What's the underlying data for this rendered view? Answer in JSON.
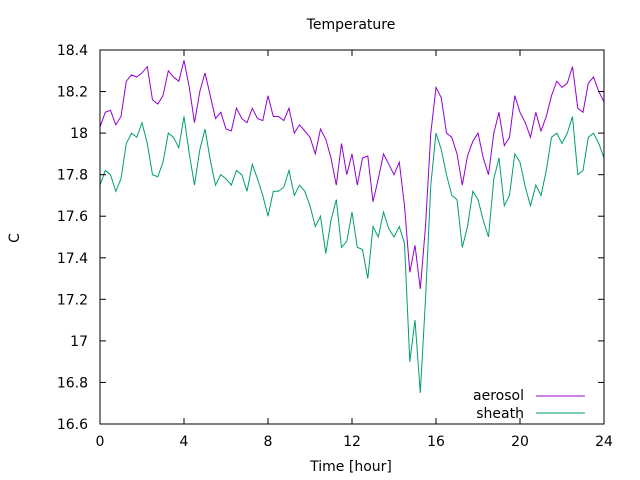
{
  "chart_data": {
    "type": "line",
    "title": "Temperature",
    "xlabel": "Time [hour]",
    "ylabel": "C",
    "xlim": [
      0,
      24
    ],
    "ylim": [
      16.6,
      18.4
    ],
    "xticks": [
      {
        "value": 0,
        "label": "0"
      },
      {
        "value": 4,
        "label": "4"
      },
      {
        "value": 8,
        "label": "8"
      },
      {
        "value": 12,
        "label": "12"
      },
      {
        "value": 16,
        "label": "16"
      },
      {
        "value": 20,
        "label": "20"
      },
      {
        "value": 24,
        "label": "24"
      }
    ],
    "yticks": [
      {
        "value": 16.6,
        "label": "16.6"
      },
      {
        "value": 16.8,
        "label": "16.8"
      },
      {
        "value": 17.0,
        "label": "17"
      },
      {
        "value": 17.2,
        "label": "17.2"
      },
      {
        "value": 17.4,
        "label": "17.4"
      },
      {
        "value": 17.6,
        "label": "17.6"
      },
      {
        "value": 17.8,
        "label": "17.8"
      },
      {
        "value": 18.0,
        "label": "18"
      },
      {
        "value": 18.2,
        "label": "18.2"
      },
      {
        "value": 18.4,
        "label": "18.4"
      }
    ],
    "grid": false,
    "legend_position": "bottom-right",
    "x": [
      0,
      0.25,
      0.5,
      0.75,
      1,
      1.25,
      1.5,
      1.75,
      2,
      2.25,
      2.5,
      2.75,
      3,
      3.25,
      3.5,
      3.75,
      4,
      4.25,
      4.5,
      4.75,
      5,
      5.25,
      5.5,
      5.75,
      6,
      6.25,
      6.5,
      6.75,
      7,
      7.25,
      7.5,
      7.75,
      8,
      8.25,
      8.5,
      8.75,
      9,
      9.25,
      9.5,
      9.75,
      10,
      10.25,
      10.5,
      10.75,
      11,
      11.25,
      11.5,
      11.75,
      12,
      12.25,
      12.5,
      12.75,
      13,
      13.25,
      13.5,
      13.75,
      14,
      14.25,
      14.5,
      14.75,
      15,
      15.25,
      15.5,
      15.75,
      16,
      16.25,
      16.5,
      16.75,
      17,
      17.25,
      17.5,
      17.75,
      18,
      18.25,
      18.5,
      18.75,
      19,
      19.25,
      19.5,
      19.75,
      20,
      20.25,
      20.5,
      20.75,
      21,
      21.25,
      21.5,
      21.75,
      22,
      22.25,
      22.5,
      22.75,
      23,
      23.25,
      23.5,
      23.75,
      24
    ],
    "series": [
      {
        "name": "aerosol",
        "color": "#9400d3",
        "values": [
          18.03,
          18.1,
          18.11,
          18.04,
          18.08,
          18.25,
          18.28,
          18.27,
          18.29,
          18.32,
          18.16,
          18.14,
          18.18,
          18.3,
          18.27,
          18.25,
          18.35,
          18.22,
          18.05,
          18.2,
          18.29,
          18.18,
          18.07,
          18.1,
          18.02,
          18.01,
          18.12,
          18.07,
          18.05,
          18.12,
          18.07,
          18.06,
          18.18,
          18.08,
          18.08,
          18.06,
          18.12,
          18.0,
          18.04,
          18.01,
          17.98,
          17.9,
          18.02,
          17.97,
          17.88,
          17.75,
          17.95,
          17.8,
          17.9,
          17.75,
          17.88,
          17.89,
          17.67,
          17.78,
          17.9,
          17.85,
          17.8,
          17.86,
          17.65,
          17.33,
          17.46,
          17.25,
          17.55,
          18.0,
          18.22,
          18.17,
          18.0,
          17.98,
          17.9,
          17.75,
          17.89,
          17.96,
          18.0,
          17.88,
          17.8,
          18.0,
          18.1,
          17.94,
          17.98,
          18.18,
          18.1,
          18.05,
          17.98,
          18.1,
          18.01,
          18.08,
          18.18,
          18.25,
          18.22,
          18.24,
          18.32,
          18.12,
          18.1,
          18.24,
          18.27,
          18.2,
          18.15
        ]
      },
      {
        "name": "sheath",
        "color": "#009e73",
        "values": [
          17.75,
          17.82,
          17.8,
          17.72,
          17.78,
          17.95,
          18.0,
          17.98,
          18.05,
          17.95,
          17.8,
          17.79,
          17.86,
          18.0,
          17.98,
          17.93,
          18.08,
          17.9,
          17.75,
          17.92,
          18.02,
          17.87,
          17.75,
          17.8,
          17.78,
          17.75,
          17.82,
          17.8,
          17.72,
          17.85,
          17.78,
          17.7,
          17.6,
          17.72,
          17.72,
          17.74,
          17.82,
          17.7,
          17.75,
          17.72,
          17.65,
          17.55,
          17.6,
          17.42,
          17.58,
          17.68,
          17.45,
          17.48,
          17.62,
          17.45,
          17.44,
          17.3,
          17.55,
          17.5,
          17.62,
          17.54,
          17.5,
          17.55,
          17.47,
          16.9,
          17.1,
          16.75,
          17.2,
          17.75,
          18.0,
          17.92,
          17.8,
          17.7,
          17.68,
          17.45,
          17.55,
          17.72,
          17.68,
          17.58,
          17.5,
          17.78,
          17.88,
          17.65,
          17.7,
          17.9,
          17.86,
          17.74,
          17.65,
          17.75,
          17.7,
          17.82,
          17.98,
          18.0,
          17.95,
          18.0,
          18.08,
          17.8,
          17.82,
          17.98,
          18.0,
          17.95,
          17.88
        ]
      }
    ]
  }
}
